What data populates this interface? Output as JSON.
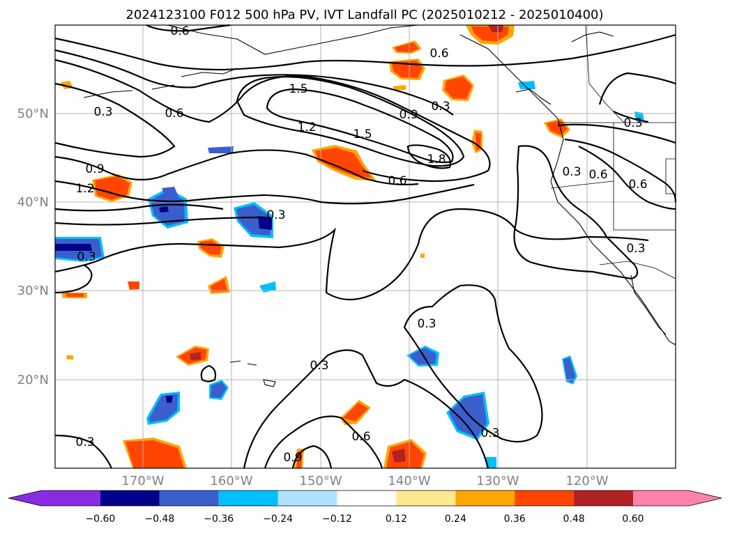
{
  "title": "2024123100 F012 500 hPa PV, IVT Landfall PC (2025010212 - 2025010400)",
  "map": {
    "lat_labels": [
      "50°N",
      "40°N",
      "30°N",
      "20°N"
    ],
    "lon_labels": [
      "170°W",
      "160°W",
      "150°W",
      "140°W",
      "130°W",
      "120°W"
    ],
    "contour_labels": [
      {
        "text": "0.6"
      },
      {
        "text": "0.6"
      },
      {
        "text": "1.5"
      },
      {
        "text": "0.3"
      },
      {
        "text": "0.6"
      },
      {
        "text": "1.2"
      },
      {
        "text": "0.9"
      },
      {
        "text": "0.3"
      },
      {
        "text": "1.5"
      },
      {
        "text": "1.8"
      },
      {
        "text": "0.6"
      },
      {
        "text": "0.9"
      },
      {
        "text": "1.2"
      },
      {
        "text": "0.3"
      },
      {
        "text": "0.3"
      },
      {
        "text": "0.3"
      },
      {
        "text": "0.6"
      },
      {
        "text": "0.6"
      },
      {
        "text": "0.3"
      },
      {
        "text": "0.3"
      },
      {
        "text": "0.3"
      },
      {
        "text": "0.3"
      },
      {
        "text": "0.6"
      },
      {
        "text": "0.3"
      },
      {
        "text": "0.9"
      }
    ]
  },
  "colorbar": {
    "ticks": [
      "−0.60",
      "−0.48",
      "−0.36",
      "−0.24",
      "−0.12",
      "0.12",
      "0.24",
      "0.36",
      "0.48",
      "0.60"
    ],
    "colors": [
      "#8a2be2",
      "#00008b",
      "#3a5fcd",
      "#00bfff",
      "#b0e2ff",
      "#ffffff",
      "#ffe98f",
      "#ffa500",
      "#ff4500",
      "#b22222",
      "#ff82ab"
    ]
  },
  "colors": {
    "neg_light": "#b0e2ff",
    "neg_mid": "#00bfff",
    "neg_blue": "#3a5fcd",
    "neg_dark": "#00008b",
    "pos_light": "#ffe98f",
    "pos_mid": "#ffa500",
    "pos_red": "#ff4500",
    "pos_dark": "#b22222"
  }
}
